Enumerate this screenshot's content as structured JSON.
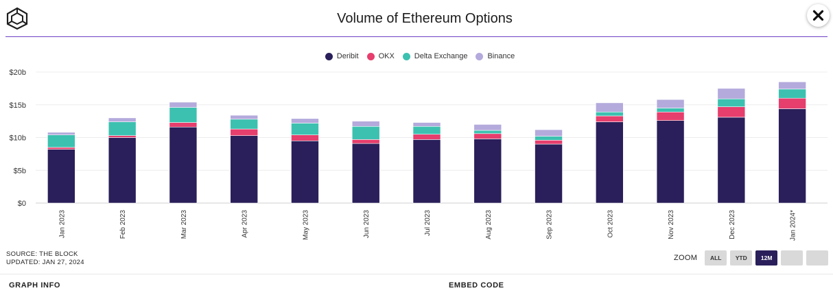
{
  "header": {
    "title": "Volume of Ethereum Options",
    "logo_icon": "cube-logo-icon",
    "close_icon": "close-icon"
  },
  "legend": [
    {
      "name": "Deribit",
      "color": "#2a1f5a"
    },
    {
      "name": "OKX",
      "color": "#e63e6d"
    },
    {
      "name": "Delta Exchange",
      "color": "#3cc1b0"
    },
    {
      "name": "Binance",
      "color": "#b4aadc"
    }
  ],
  "chart_data": {
    "type": "bar",
    "stacked": true,
    "title": "Volume of Ethereum Options",
    "categories": [
      "Jan 2023",
      "Feb 2023",
      "Mar 2023",
      "Apr 2023",
      "May 2023",
      "Jun 2023",
      "Jul 2023",
      "Aug 2023",
      "Sep 2023",
      "Oct 2023",
      "Nov 2023",
      "Dec 2023",
      "Jan 2024*"
    ],
    "series": [
      {
        "name": "Deribit",
        "color": "#2a1f5a",
        "values": [
          8.2,
          10.0,
          11.6,
          10.3,
          9.5,
          9.1,
          9.7,
          9.8,
          9.0,
          12.4,
          12.6,
          13.1,
          14.4
        ]
      },
      {
        "name": "OKX",
        "color": "#e63e6d",
        "values": [
          0.3,
          0.3,
          0.7,
          1.0,
          0.9,
          0.6,
          0.8,
          0.8,
          0.6,
          0.9,
          1.3,
          1.6,
          1.6
        ]
      },
      {
        "name": "Delta Exchange",
        "color": "#3cc1b0",
        "values": [
          1.9,
          2.1,
          2.3,
          1.5,
          1.8,
          2.0,
          1.2,
          0.5,
          0.6,
          0.6,
          0.6,
          1.2,
          1.4
        ]
      },
      {
        "name": "Binance",
        "color": "#b4aadc",
        "values": [
          0.4,
          0.6,
          0.8,
          0.6,
          0.7,
          0.8,
          0.6,
          0.9,
          1.0,
          1.4,
          1.3,
          1.6,
          1.1
        ]
      }
    ],
    "y_ticks": [
      "$0",
      "$5b",
      "$10b",
      "$15b",
      "$20b"
    ],
    "ylim": [
      0,
      20
    ],
    "grid": true,
    "legend_position": "top"
  },
  "source": {
    "line1": "SOURCE: THE BLOCK",
    "line2": "UPDATED: JAN 27, 2024"
  },
  "zoom": {
    "label": "ZOOM",
    "buttons": [
      "ALL",
      "YTD",
      "12M",
      "",
      ""
    ],
    "active": "12M"
  },
  "footer": {
    "graph_info": "GRAPH INFO",
    "embed_code": "EMBED CODE"
  }
}
